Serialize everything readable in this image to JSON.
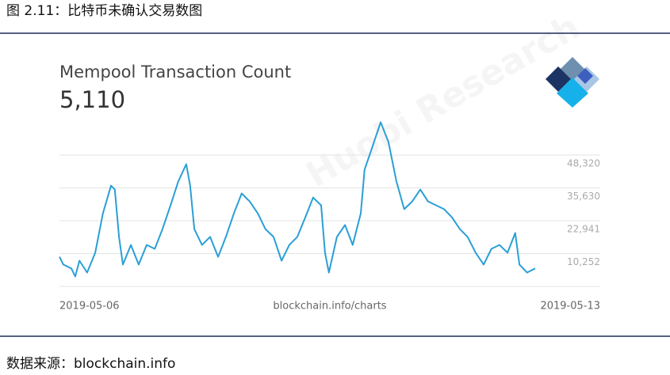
{
  "figure_title": "图 2.11：比特币未确认交易数图",
  "source": "数据来源：blockchain.info",
  "watermark": "Huobi Research",
  "chart_data": {
    "type": "line",
    "title": "Mempool Transaction Count",
    "subtitle": "5,110",
    "annotation": "blockchain.info/charts",
    "color": "#2a9fd6",
    "grid": true,
    "x": [
      0,
      1.2,
      3.7,
      4.9,
      6.2,
      8.6,
      11.1,
      13.5,
      16,
      17.2,
      18.5,
      19.7,
      22.2,
      24.6,
      27.1,
      29.6,
      32,
      34.5,
      36.9,
      39.4,
      40.6,
      41.9,
      44.3,
      46.8,
      49.3,
      51.7,
      54.2,
      56.6,
      59.1,
      61.6,
      64,
      66.5,
      69,
      71.4,
      73.9,
      76.4,
      78.8,
      81.3,
      82.5,
      83.7,
      86.2,
      88.7,
      91.1,
      93.6,
      94.8,
      97.3,
      99.8,
      102.2,
      104.7,
      107.1,
      109.6,
      112.1,
      114.5,
      117,
      119.5,
      121.9,
      124.4,
      126.8,
      129.3,
      131.8,
      134.2,
      136.7,
      139.2,
      141.6,
      142.9,
      145.3,
      147.8
    ],
    "values": [
      9000,
      6000,
      4500,
      1400,
      7500,
      2900,
      10600,
      25800,
      36500,
      35000,
      16700,
      6000,
      13600,
      6000,
      13600,
      12100,
      19700,
      28900,
      38100,
      44800,
      36500,
      19700,
      13600,
      16700,
      9000,
      16700,
      25800,
      33500,
      30400,
      25800,
      19700,
      16700,
      7500,
      13600,
      16700,
      24300,
      31900,
      28900,
      10600,
      2900,
      16700,
      21300,
      13600,
      25800,
      42700,
      51800,
      61000,
      53400,
      38100,
      27400,
      30400,
      35000,
      30400,
      28900,
      27400,
      24300,
      19700,
      16700,
      10600,
      6000,
      12100,
      13600,
      10600,
      18200,
      6000,
      2900,
      4500
    ],
    "xlim": [
      0,
      168
    ],
    "xticks": [
      {
        "value": 0,
        "label": "2019-05-06"
      },
      {
        "value": 168,
        "label": "2019-05-13"
      }
    ],
    "ylim": [
      -2437,
      48320
    ],
    "yticks": [
      {
        "value": 10252,
        "label": "10,252"
      },
      {
        "value": 22941,
        "label": "22,941"
      },
      {
        "value": 35630,
        "label": "35,630"
      },
      {
        "value": 48320,
        "label": "48,320"
      }
    ]
  }
}
